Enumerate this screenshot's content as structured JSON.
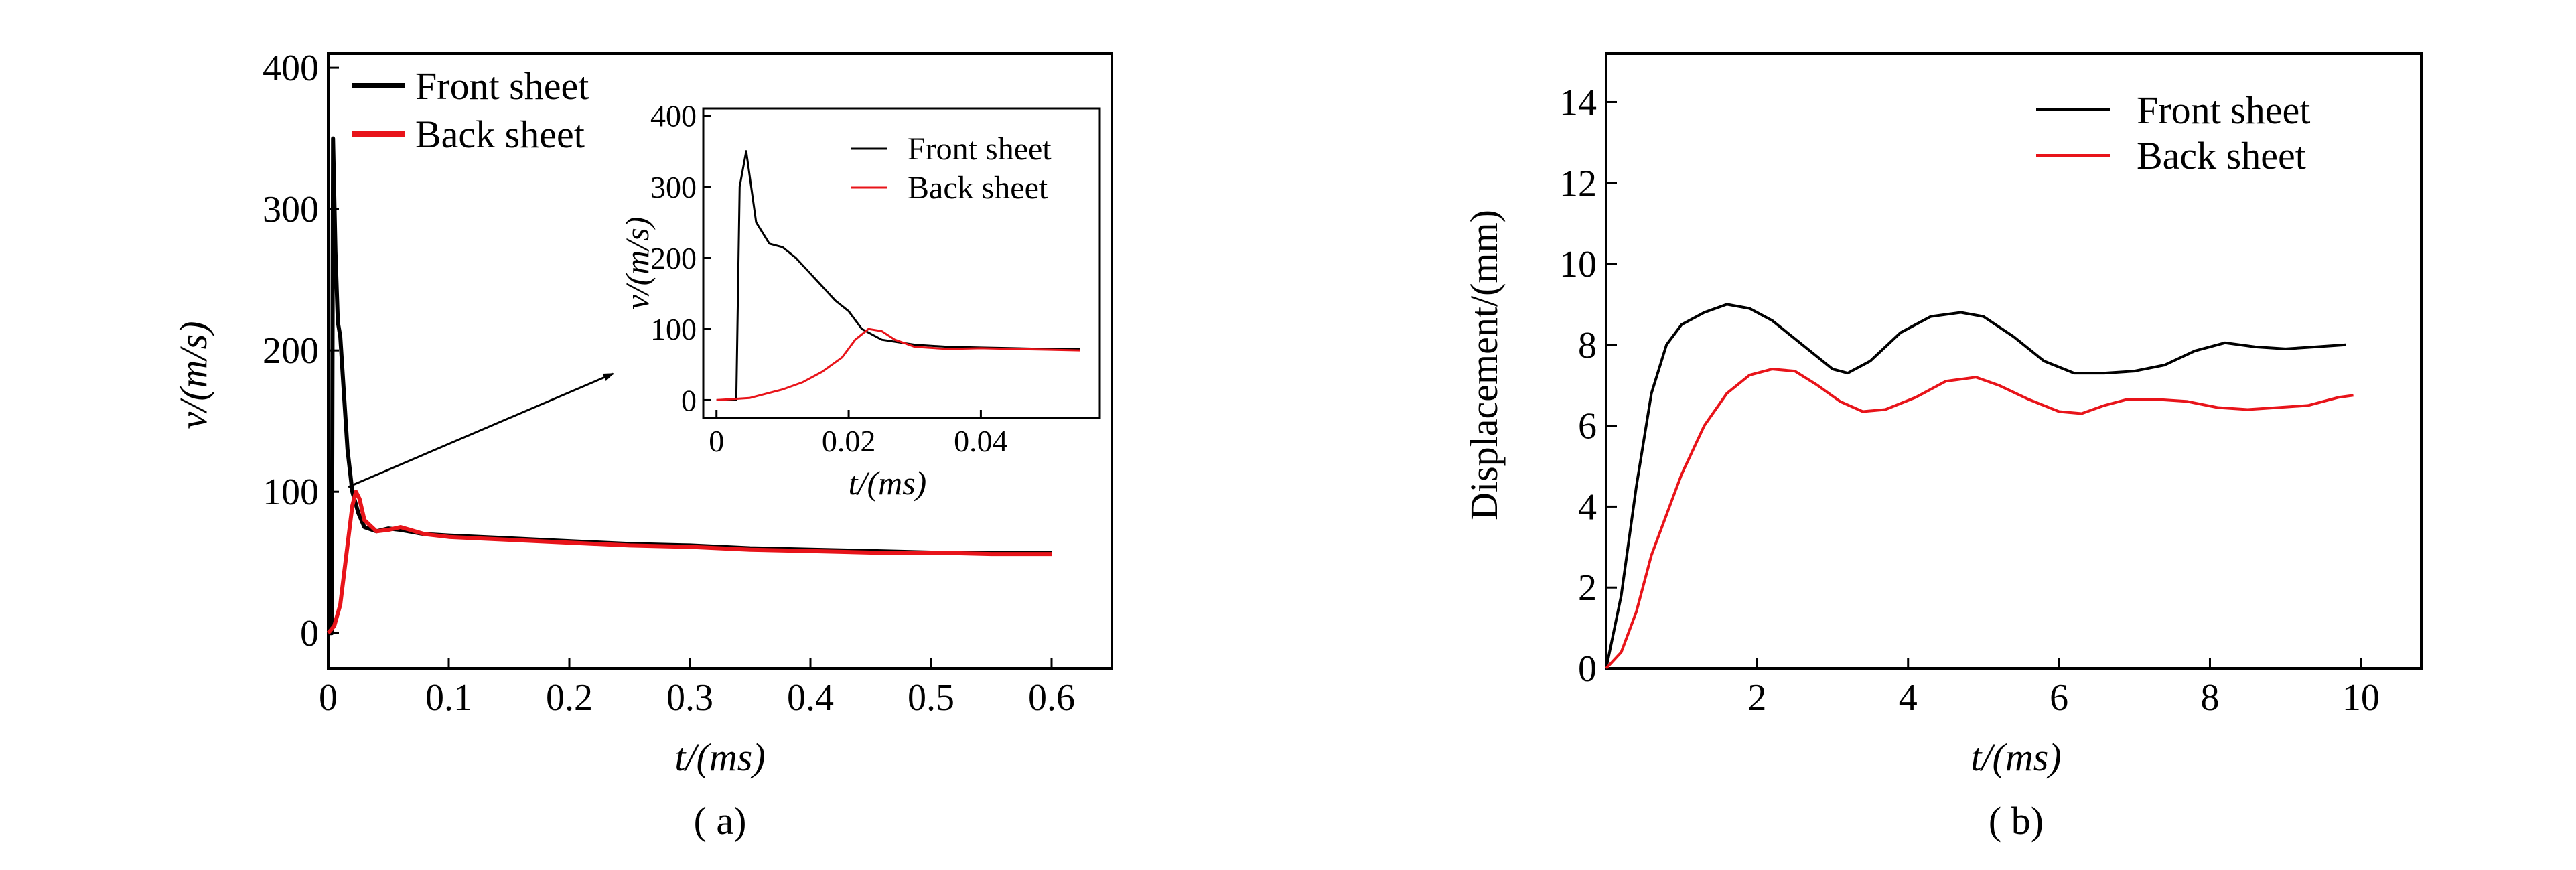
{
  "colors": {
    "front": "#000000",
    "back": "#e8141a"
  },
  "chart_data": [
    {
      "id": "a",
      "type": "line",
      "caption": "( a)",
      "xlabel": "t/(ms)",
      "ylabel": "v/(m/s)",
      "xlim": [
        0,
        0.65
      ],
      "ylim": [
        -25,
        410
      ],
      "xticks": [
        "0",
        "0.1",
        "0.2",
        "0.3",
        "0.4",
        "0.5",
        "0.6"
      ],
      "yticks": [
        "0",
        "100",
        "200",
        "300",
        "400"
      ],
      "legend": {
        "position": "top-left",
        "entries": [
          "Front sheet",
          "Back sheet"
        ]
      },
      "annotation": "arrow from (0.015, 103) to inset",
      "series": [
        {
          "name": "Front sheet",
          "color": "#000000",
          "x": [
            0,
            0.003,
            0.004,
            0.006,
            0.008,
            0.01,
            0.013,
            0.016,
            0.02,
            0.025,
            0.03,
            0.04,
            0.05,
            0.06,
            0.08,
            0.1,
            0.15,
            0.2,
            0.25,
            0.3,
            0.35,
            0.4,
            0.45,
            0.5,
            0.55,
            0.6
          ],
          "y": [
            0,
            0,
            350,
            270,
            220,
            210,
            170,
            130,
            100,
            85,
            75,
            72,
            74,
            73,
            70,
            69,
            67,
            65,
            63,
            62,
            60,
            59,
            58,
            57,
            57,
            57
          ]
        },
        {
          "name": "Back sheet",
          "color": "#e8141a",
          "x": [
            0,
            0.005,
            0.01,
            0.015,
            0.02,
            0.023,
            0.026,
            0.03,
            0.04,
            0.05,
            0.06,
            0.08,
            0.1,
            0.15,
            0.2,
            0.25,
            0.3,
            0.35,
            0.4,
            0.45,
            0.5,
            0.55,
            0.6
          ],
          "y": [
            0,
            5,
            20,
            55,
            90,
            100,
            95,
            80,
            72,
            73,
            75,
            70,
            68,
            66,
            64,
            62,
            61,
            59,
            58,
            57,
            57,
            56,
            56
          ]
        }
      ],
      "inset": {
        "xlabel": "t/(ms)",
        "ylabel": "v/(m/s)",
        "xlim": [
          -0.002,
          0.058
        ],
        "ylim": [
          -25,
          410
        ],
        "xticks": [
          "0",
          "0.02",
          "0.04"
        ],
        "yticks": [
          "0",
          "100",
          "200",
          "300",
          "400"
        ],
        "legend": {
          "position": "top-right",
          "entries": [
            "Front sheet",
            "Back sheet"
          ]
        },
        "series": [
          {
            "name": "Front sheet",
            "color": "#000000",
            "x": [
              0,
              0.003,
              0.0035,
              0.0045,
              0.006,
              0.008,
              0.01,
              0.012,
              0.015,
              0.018,
              0.02,
              0.022,
              0.025,
              0.03,
              0.035,
              0.04,
              0.045,
              0.05,
              0.055
            ],
            "y": [
              0,
              0,
              300,
              350,
              250,
              220,
              215,
              200,
              170,
              140,
              125,
              100,
              85,
              78,
              75,
              74,
              73,
              72,
              72
            ]
          },
          {
            "name": "Back sheet",
            "color": "#e8141a",
            "x": [
              0,
              0.005,
              0.01,
              0.013,
              0.016,
              0.019,
              0.021,
              0.023,
              0.025,
              0.027,
              0.03,
              0.035,
              0.04,
              0.045,
              0.05,
              0.055
            ],
            "y": [
              0,
              3,
              15,
              25,
              40,
              60,
              85,
              100,
              97,
              85,
              75,
              72,
              73,
              72,
              71,
              70
            ]
          }
        ]
      }
    },
    {
      "id": "b",
      "type": "line",
      "caption": "( b)",
      "xlabel": "t/(ms)",
      "ylabel": "Displacement/(mm)",
      "xlim": [
        0,
        10.8
      ],
      "ylim": [
        0,
        15.2
      ],
      "xticks": [
        "2",
        "4",
        "6",
        "8",
        "10"
      ],
      "yticks": [
        "0",
        "2",
        "4",
        "6",
        "8",
        "10",
        "12",
        "14"
      ],
      "legend": {
        "position": "top-right",
        "entries": [
          "Front sheet",
          "Back sheet"
        ]
      },
      "series": [
        {
          "name": "Front sheet",
          "color": "#000000",
          "x": [
            0,
            0.2,
            0.4,
            0.6,
            0.8,
            1.0,
            1.3,
            1.6,
            1.9,
            2.2,
            2.6,
            3.0,
            3.2,
            3.5,
            3.9,
            4.3,
            4.7,
            5.0,
            5.4,
            5.8,
            6.2,
            6.6,
            7.0,
            7.4,
            7.8,
            8.2,
            8.6,
            9.0,
            9.4,
            9.8
          ],
          "y": [
            0,
            1.8,
            4.5,
            6.8,
            8.0,
            8.5,
            8.8,
            9.0,
            8.9,
            8.6,
            8.0,
            7.4,
            7.3,
            7.6,
            8.3,
            8.7,
            8.8,
            8.7,
            8.2,
            7.6,
            7.3,
            7.3,
            7.35,
            7.5,
            7.85,
            8.05,
            7.95,
            7.9,
            7.95,
            8.0
          ]
        },
        {
          "name": "Back sheet",
          "color": "#e8141a",
          "x": [
            0,
            0.2,
            0.4,
            0.6,
            0.8,
            1.0,
            1.3,
            1.6,
            1.9,
            2.2,
            2.5,
            2.8,
            3.1,
            3.4,
            3.7,
            4.1,
            4.5,
            4.9,
            5.2,
            5.6,
            6.0,
            6.3,
            6.6,
            6.9,
            7.3,
            7.7,
            8.1,
            8.5,
            8.9,
            9.3,
            9.7,
            9.9
          ],
          "y": [
            0,
            0.4,
            1.4,
            2.8,
            3.8,
            4.8,
            6.0,
            6.8,
            7.25,
            7.4,
            7.35,
            7.0,
            6.6,
            6.35,
            6.4,
            6.7,
            7.1,
            7.2,
            7.0,
            6.65,
            6.35,
            6.3,
            6.5,
            6.65,
            6.65,
            6.6,
            6.45,
            6.4,
            6.45,
            6.5,
            6.7,
            6.75
          ]
        }
      ]
    }
  ]
}
